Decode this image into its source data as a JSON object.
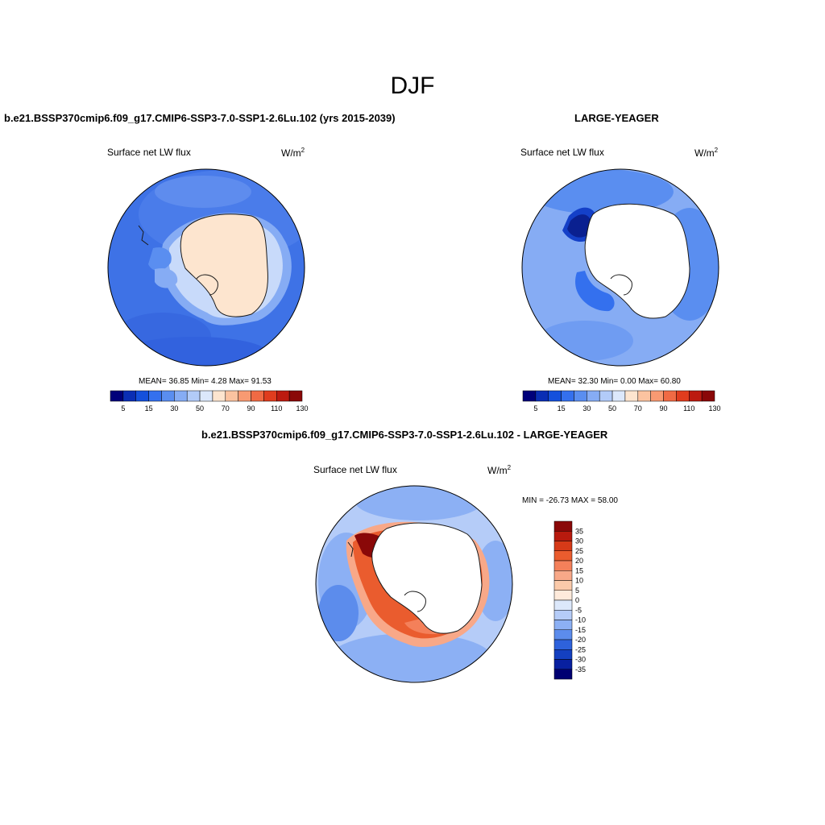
{
  "season": "DJF",
  "panels": {
    "left": {
      "title": "b.e21.BSSP370cmip6.f09_g17.CMIP6-SSP3-7.0-SSP1-2.6Lu.102 (yrs 2015-2039)",
      "variable": "Surface net LW flux",
      "units_base": "W/m",
      "units_exp": "2",
      "stats": "MEAN=  36.85  Min=   4.28  Max=  91.53",
      "colorbar_labels": [
        "5",
        "15",
        "30",
        "50",
        "70",
        "90",
        "110",
        "130"
      ]
    },
    "right": {
      "title": "LARGE-YEAGER",
      "variable": "Surface net LW flux",
      "units_base": "W/m",
      "units_exp": "2",
      "stats": "MEAN=  32.30  Min=   0.00  Max=  60.80",
      "colorbar_labels": [
        "5",
        "15",
        "30",
        "50",
        "70",
        "90",
        "110",
        "130"
      ]
    },
    "diff": {
      "title": "b.e21.BSSP370cmip6.f09_g17.CMIP6-SSP3-7.0-SSP1-2.6Lu.102 - LARGE-YEAGER",
      "variable": "Surface net LW flux",
      "units_base": "W/m",
      "units_exp": "2",
      "minmax": "MIN = -26.73 MAX =  58.00",
      "colorbar_labels": [
        "35",
        "30",
        "25",
        "20",
        "15",
        "10",
        "5",
        "0",
        "-5",
        "-10",
        "-15",
        "-20",
        "-25",
        "-30",
        "-35"
      ]
    }
  },
  "colors": {
    "mean_scale": [
      "#00007a",
      "#0a2eb4",
      "#1450dc",
      "#3470ee",
      "#5a8ef0",
      "#86acf4",
      "#b2cbf8",
      "#dce8fb",
      "#fde5cf",
      "#fbc3a0",
      "#f89a72",
      "#f06a44",
      "#e03c1e",
      "#bc1a10",
      "#8a0808"
    ],
    "diff_scale": [
      "#8a0808",
      "#b81a0e",
      "#d63a18",
      "#ea5c2e",
      "#f4805a",
      "#f8a888",
      "#fbcaaa",
      "#feeadb",
      "#dce8fb",
      "#b5ccf8",
      "#8cb0f4",
      "#5c8cec",
      "#2e62dc",
      "#1440c0",
      "#0820a0",
      "#000072"
    ],
    "ocean_base": "#3b70e4",
    "land_mask": "#ffffff"
  }
}
